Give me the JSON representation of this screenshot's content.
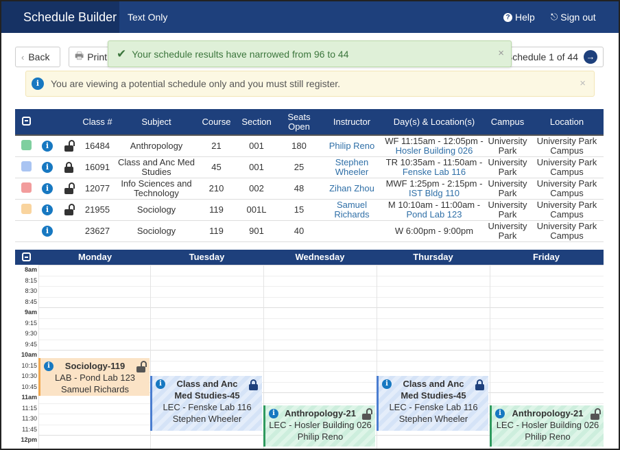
{
  "nav": {
    "brand": "Schedule Builder",
    "text_only": "Text Only",
    "help": "Help",
    "sign_out": "Sign out"
  },
  "toolbar": {
    "back": "Back",
    "print": "Print",
    "schedule_counter": "Schedule 1 of 44"
  },
  "toast": {
    "message": "Your schedule results have narrowed from 96 to 44"
  },
  "alert": {
    "message": "You are viewing a potential schedule only and you must still register."
  },
  "table": {
    "headers": {
      "class": "Class #",
      "subject": "Subject",
      "course": "Course",
      "section": "Section",
      "seats": "Seats Open",
      "instructor": "Instructor",
      "days": "Day(s) & Location(s)",
      "campus": "Campus",
      "location": "Location"
    },
    "rows": [
      {
        "color": "#7fcf9f",
        "lock": "open",
        "class": "16484",
        "subject": "Anthropology",
        "course": "21",
        "section": "001",
        "seats": "180",
        "instructor": "Philip Reno",
        "time": "WF 11:15am - 12:05pm -",
        "room": "Hosler Building 026",
        "campus": "University Park",
        "location": "University Park Campus"
      },
      {
        "color": "#a9c4f2",
        "lock": "closed",
        "class": "16091",
        "subject": "Class and Anc Med Studies",
        "course": "45",
        "section": "001",
        "seats": "25",
        "instructor": "Stephen Wheeler",
        "time": "TR 10:35am - 11:50am -",
        "room": "Fenske Lab 116",
        "campus": "University Park",
        "location": "University Park Campus"
      },
      {
        "color": "#f29c9c",
        "lock": "open",
        "class": "12077",
        "subject": "Info Sciences and Technology",
        "course": "210",
        "section": "002",
        "seats": "48",
        "instructor": "Zihan Zhou",
        "time": "MWF 1:25pm - 2:15pm -",
        "room": "IST Bldg 110",
        "campus": "University Park",
        "location": "University Park Campus"
      },
      {
        "color": "#f9d49e",
        "lock": "open",
        "class": "21955",
        "subject": "Sociology",
        "course": "119",
        "section": "001L",
        "seats": "15",
        "instructor": "Samuel Richards",
        "time": "M 10:10am - 11:00am -",
        "room": "Pond Lab 123",
        "campus": "University Park",
        "location": "University Park Campus"
      },
      {
        "color": "",
        "lock": "",
        "class": "23627",
        "subject": "Sociology",
        "course": "119",
        "section": "901",
        "seats": "40",
        "instructor": "",
        "time": "W 6:00pm - 9:00pm",
        "room": "",
        "campus": "University Park",
        "location": "University Park Campus"
      }
    ]
  },
  "calendar": {
    "days": [
      "Monday",
      "Tuesday",
      "Wednesday",
      "Thursday",
      "Friday"
    ],
    "times": [
      "8am",
      "8:15",
      "8:30",
      "8:45",
      "9am",
      "9:15",
      "9:30",
      "9:45",
      "10am",
      "10:15",
      "10:30",
      "10:45",
      "11am",
      "11:15",
      "11:30",
      "11:45",
      "12pm"
    ],
    "events": [
      {
        "kind": "soc",
        "title": "Sociology-119",
        "line1": "LAB - Pond Lab 123",
        "line2": "Samuel Richards",
        "lock": "gray"
      },
      {
        "kind": "cam",
        "title": "Class and Anc Med Studies-45",
        "line1": "LEC - Fenske Lab 116",
        "line2": "Stephen Wheeler",
        "lock": "navy"
      },
      {
        "kind": "ant",
        "title": "Anthropology-21",
        "line1": "LEC - Hosler Building 026",
        "line2": "Philip Reno",
        "lock": "gray"
      },
      {
        "kind": "cam",
        "title": "Class and Anc Med Studies-45",
        "line1": "LEC - Fenske Lab 116",
        "line2": "Stephen Wheeler",
        "lock": "navy"
      },
      {
        "kind": "ant",
        "title": "Anthropology-21",
        "line1": "LEC - Hosler Building 026",
        "line2": "Philip Reno",
        "lock": "gray"
      }
    ]
  }
}
